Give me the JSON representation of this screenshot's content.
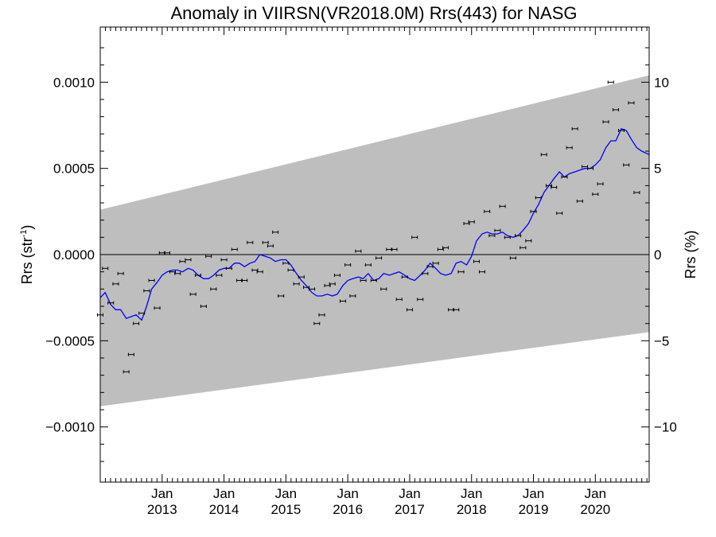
{
  "chart_data": {
    "type": "scatter",
    "title": "Anomaly in VIIRSN(VR2018.0M) Rrs(443) for NASG",
    "ylabel_left": "Rrs (str",
    "ylabel_left_superscript": "-1",
    "ylabel_left_close": ")",
    "ylabel_right": "Rrs (%)",
    "ylim": [
      -0.00132,
      0.00132
    ],
    "ylim_right_percent": [
      -13.2,
      13.2
    ],
    "xlim": [
      2012.0,
      2020.87
    ],
    "x_ticks": [
      {
        "x": 2013.0,
        "month": "Jan",
        "year": "2013"
      },
      {
        "x": 2014.0,
        "month": "Jan",
        "year": "2014"
      },
      {
        "x": 2015.0,
        "month": "Jan",
        "year": "2015"
      },
      {
        "x": 2016.0,
        "month": "Jan",
        "year": "2016"
      },
      {
        "x": 2017.0,
        "month": "Jan",
        "year": "2017"
      },
      {
        "x": 2018.0,
        "month": "Jan",
        "year": "2018"
      },
      {
        "x": 2019.0,
        "month": "Jan",
        "year": "2019"
      },
      {
        "x": 2020.0,
        "month": "Jan",
        "year": "2020"
      }
    ],
    "y_ticks_left": [
      {
        "value": 0.001,
        "label": "0.0010"
      },
      {
        "value": 0.0005,
        "label": "0.0005"
      },
      {
        "value": 0.0,
        "label": "0.0000"
      },
      {
        "value": -0.0005,
        "label": "−0.0005"
      },
      {
        "value": -0.001,
        "label": "−0.0010"
      }
    ],
    "y_ticks_right": [
      {
        "value": 10,
        "label": "10"
      },
      {
        "value": 5,
        "label": "5"
      },
      {
        "value": 0,
        "label": "0"
      },
      {
        "value": -5,
        "label": "−5"
      },
      {
        "value": -10,
        "label": "−10"
      }
    ],
    "band": {
      "color": "#bebebe",
      "upper": [
        [
          2012.0,
          0.00026
        ],
        [
          2020.87,
          0.00104
        ]
      ],
      "lower": [
        [
          2012.0,
          -0.00088
        ],
        [
          2020.87,
          -0.00045
        ]
      ]
    },
    "zero_line": true,
    "points": [
      [
        2012.0,
        -0.00035
      ],
      [
        2012.08,
        -8e-05
      ],
      [
        2012.17,
        -0.00028
      ],
      [
        2012.25,
        -0.00017
      ],
      [
        2012.33,
        -0.00011
      ],
      [
        2012.42,
        -0.00068
      ],
      [
        2012.5,
        -0.00058
      ],
      [
        2012.58,
        -0.0004
      ],
      [
        2012.67,
        -0.00034
      ],
      [
        2012.75,
        -0.00021
      ],
      [
        2012.83,
        -0.00015
      ],
      [
        2012.92,
        -0.00031
      ],
      [
        2013.0,
        1e-05
      ],
      [
        2013.08,
        1e-05
      ],
      [
        2013.17,
        -0.0001
      ],
      [
        2013.25,
        -0.00011
      ],
      [
        2013.33,
        -4e-05
      ],
      [
        2013.42,
        -3e-05
      ],
      [
        2013.5,
        -0.00023
      ],
      [
        2013.58,
        -0.00012
      ],
      [
        2013.67,
        -0.0003
      ],
      [
        2013.75,
        -1e-05
      ],
      [
        2013.83,
        -0.0002
      ],
      [
        2013.92,
        -0.00012
      ],
      [
        2014.0,
        -3e-05
      ],
      [
        2014.08,
        -8e-05
      ],
      [
        2014.17,
        3e-05
      ],
      [
        2014.25,
        -0.00015
      ],
      [
        2014.33,
        -0.00015
      ],
      [
        2014.42,
        7e-05
      ],
      [
        2014.5,
        -9e-05
      ],
      [
        2014.58,
        -0.0001
      ],
      [
        2014.67,
        7e-05
      ],
      [
        2014.75,
        5e-05
      ],
      [
        2014.83,
        0.00013
      ],
      [
        2014.92,
        -0.00024
      ],
      [
        2015.0,
        -5e-05
      ],
      [
        2015.08,
        -9e-05
      ],
      [
        2015.17,
        -0.00017
      ],
      [
        2015.25,
        -0.00013
      ],
      [
        2015.33,
        -0.00019
      ],
      [
        2015.42,
        -0.0002
      ],
      [
        2015.5,
        -0.0004
      ],
      [
        2015.58,
        -0.00035
      ],
      [
        2015.67,
        -0.00018
      ],
      [
        2015.75,
        -0.00017
      ],
      [
        2015.83,
        -0.00012
      ],
      [
        2015.92,
        -0.00027
      ],
      [
        2016.0,
        -6e-05
      ],
      [
        2016.08,
        -0.00024
      ],
      [
        2016.17,
        2e-05
      ],
      [
        2016.25,
        -0.00015
      ],
      [
        2016.33,
        -6e-05
      ],
      [
        2016.42,
        -0.00015
      ],
      [
        2016.5,
        -2e-05
      ],
      [
        2016.58,
        -0.0002
      ],
      [
        2016.67,
        3e-05
      ],
      [
        2016.75,
        3e-05
      ],
      [
        2016.83,
        -0.00026
      ],
      [
        2016.92,
        -0.00013
      ],
      [
        2017.0,
        -0.00032
      ],
      [
        2017.08,
        0.0001
      ],
      [
        2017.17,
        -0.00026
      ],
      [
        2017.25,
        -0.00011
      ],
      [
        2017.33,
        -7e-05
      ],
      [
        2017.42,
        -5e-05
      ],
      [
        2017.5,
        3e-05
      ],
      [
        2017.58,
        4e-05
      ],
      [
        2017.67,
        -0.00032
      ],
      [
        2017.75,
        -0.00032
      ],
      [
        2017.83,
        -0.0001
      ],
      [
        2017.92,
        0.00018
      ],
      [
        2018.0,
        0.00019
      ],
      [
        2018.08,
        -4e-05
      ],
      [
        2018.17,
        -0.0001
      ],
      [
        2018.25,
        0.00025
      ],
      [
        2018.33,
        0.00011
      ],
      [
        2018.42,
        0.00014
      ],
      [
        2018.5,
        0.00028
      ],
      [
        2018.58,
        0.0001
      ],
      [
        2018.67,
        -2e-05
      ],
      [
        2018.75,
        0.00011
      ],
      [
        2018.83,
        4e-05
      ],
      [
        2018.92,
        8e-05
      ],
      [
        2019.0,
        0.00025
      ],
      [
        2019.08,
        0.00033
      ],
      [
        2019.17,
        0.00058
      ],
      [
        2019.25,
        0.0004
      ],
      [
        2019.33,
        0.00039
      ],
      [
        2019.42,
        0.00024
      ],
      [
        2019.5,
        0.00045
      ],
      [
        2019.58,
        0.00062
      ],
      [
        2019.67,
        0.00073
      ],
      [
        2019.75,
        0.00031
      ],
      [
        2019.83,
        0.00051
      ],
      [
        2019.92,
        0.0005
      ],
      [
        2020.0,
        0.00035
      ],
      [
        2020.08,
        0.00041
      ],
      [
        2020.17,
        0.00077
      ],
      [
        2020.25,
        0.001
      ],
      [
        2020.33,
        0.00084
      ],
      [
        2020.42,
        0.00072
      ],
      [
        2020.5,
        0.00052
      ],
      [
        2020.58,
        0.00088
      ],
      [
        2020.67,
        0.00036
      ]
    ],
    "series": [
      {
        "color": "#0000ff",
        "points": [
          [
            2012.0,
            -0.00025
          ],
          [
            2012.08,
            -0.00022
          ],
          [
            2012.17,
            -0.00029
          ],
          [
            2012.25,
            -0.00032
          ],
          [
            2012.33,
            -0.00032
          ],
          [
            2012.42,
            -0.00037
          ],
          [
            2012.5,
            -0.00036
          ],
          [
            2012.58,
            -0.00035
          ],
          [
            2012.67,
            -0.00038
          ],
          [
            2012.75,
            -0.0003
          ],
          [
            2012.83,
            -0.0002
          ],
          [
            2012.92,
            -0.00016
          ],
          [
            2013.0,
            -0.00012
          ],
          [
            2013.08,
            -0.0001
          ],
          [
            2013.17,
            -9e-05
          ],
          [
            2013.25,
            -9e-05
          ],
          [
            2013.33,
            -0.0001
          ],
          [
            2013.42,
            -8e-05
          ],
          [
            2013.5,
            -9e-05
          ],
          [
            2013.58,
            -0.00012
          ],
          [
            2013.67,
            -0.00014
          ],
          [
            2013.75,
            -0.00014
          ],
          [
            2013.83,
            -0.00012
          ],
          [
            2013.92,
            -9e-05
          ],
          [
            2014.0,
            -8e-05
          ],
          [
            2014.08,
            -8e-05
          ],
          [
            2014.17,
            -5e-05
          ],
          [
            2014.25,
            -5e-05
          ],
          [
            2014.33,
            -7e-05
          ],
          [
            2014.42,
            -5e-05
          ],
          [
            2014.5,
            -4e-05
          ],
          [
            2014.58,
            0.0
          ],
          [
            2014.67,
            -1e-05
          ],
          [
            2014.75,
            -2e-05
          ],
          [
            2014.83,
            -4e-05
          ],
          [
            2014.92,
            -3e-05
          ],
          [
            2015.0,
            -3e-05
          ],
          [
            2015.08,
            -6e-05
          ],
          [
            2015.17,
            -0.00011
          ],
          [
            2015.25,
            -0.00015
          ],
          [
            2015.33,
            -0.00018
          ],
          [
            2015.42,
            -0.00022
          ],
          [
            2015.5,
            -0.00024
          ],
          [
            2015.58,
            -0.00024
          ],
          [
            2015.67,
            -0.00023
          ],
          [
            2015.75,
            -0.00024
          ],
          [
            2015.83,
            -0.00023
          ],
          [
            2015.92,
            -0.00018
          ],
          [
            2016.0,
            -0.00015
          ],
          [
            2016.08,
            -0.00014
          ],
          [
            2016.17,
            -0.00013
          ],
          [
            2016.25,
            -0.00014
          ],
          [
            2016.33,
            -0.00011
          ],
          [
            2016.42,
            -0.00015
          ],
          [
            2016.5,
            -0.00014
          ],
          [
            2016.58,
            -0.00011
          ],
          [
            2016.67,
            -0.00012
          ],
          [
            2016.75,
            -0.00011
          ],
          [
            2016.83,
            -0.0001
          ],
          [
            2016.92,
            -0.00012
          ],
          [
            2017.0,
            -0.00014
          ],
          [
            2017.08,
            -0.00015
          ],
          [
            2017.17,
            -0.00012
          ],
          [
            2017.25,
            -9e-05
          ],
          [
            2017.33,
            -5e-05
          ],
          [
            2017.42,
            -8e-05
          ],
          [
            2017.5,
            -0.00011
          ],
          [
            2017.58,
            -0.00012
          ],
          [
            2017.67,
            -0.00011
          ],
          [
            2017.75,
            -5e-05
          ],
          [
            2017.83,
            -4e-05
          ],
          [
            2017.92,
            -6e-05
          ],
          [
            2018.0,
            -1e-05
          ],
          [
            2018.08,
            8e-05
          ],
          [
            2018.17,
            0.00012
          ],
          [
            2018.25,
            0.00013
          ],
          [
            2018.33,
            0.00012
          ],
          [
            2018.42,
            0.00012
          ],
          [
            2018.5,
            0.00013
          ],
          [
            2018.58,
            0.00011
          ],
          [
            2018.67,
            0.0001
          ],
          [
            2018.75,
            0.00011
          ],
          [
            2018.83,
            0.00014
          ],
          [
            2018.92,
            0.00018
          ],
          [
            2019.0,
            0.00024
          ],
          [
            2019.08,
            0.00029
          ],
          [
            2019.17,
            0.00036
          ],
          [
            2019.25,
            0.0004
          ],
          [
            2019.33,
            0.00044
          ],
          [
            2019.42,
            0.00048
          ],
          [
            2019.5,
            0.00045
          ],
          [
            2019.58,
            0.00047
          ],
          [
            2019.67,
            0.00048
          ],
          [
            2019.75,
            0.00049
          ],
          [
            2019.83,
            0.0005
          ],
          [
            2019.92,
            0.0005
          ],
          [
            2020.0,
            0.00052
          ],
          [
            2020.08,
            0.00055
          ],
          [
            2020.17,
            0.00062
          ],
          [
            2020.25,
            0.00066
          ],
          [
            2020.33,
            0.00066
          ],
          [
            2020.42,
            0.00073
          ],
          [
            2020.5,
            0.00072
          ],
          [
            2020.58,
            0.00067
          ],
          [
            2020.67,
            0.00062
          ],
          [
            2020.75,
            0.0006
          ],
          [
            2020.87,
            0.00058
          ]
        ]
      }
    ]
  }
}
